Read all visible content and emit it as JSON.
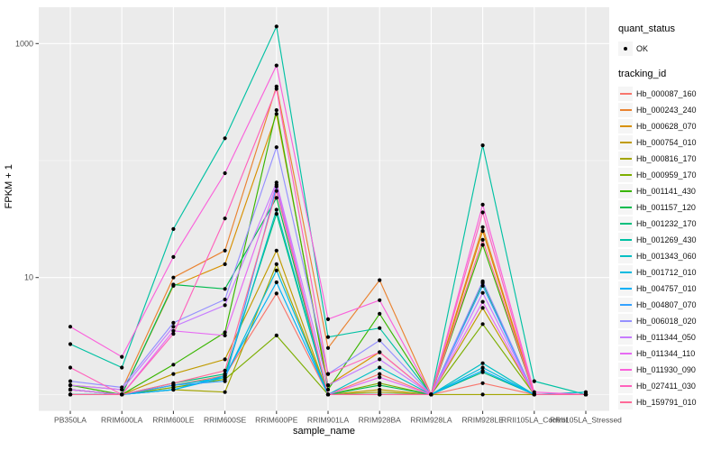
{
  "legend": {
    "quant_title": "quant_status",
    "quant_item": "OK",
    "tracking_title": "tracking_id"
  },
  "chart_data": {
    "type": "line",
    "title": "",
    "xlabel": "sample_name",
    "ylabel": "FPKM + 1",
    "scale": "log10",
    "ylim": [
      0.75,
      2000
    ],
    "grid": true,
    "legend_position": "right",
    "point_marker": "black dot on every value, legend quant_status = OK",
    "y_major_ticks": [
      {
        "label": "10",
        "value": 10
      },
      {
        "label": "1000",
        "value": 1000
      }
    ],
    "y_minor_gridlines": [
      1,
      100
    ],
    "categories": [
      "PB350LA",
      "RRIM600LA",
      "RRIM600LE",
      "RRIM600SE",
      "RRIM600PE",
      "RRIM901LA",
      "RRIM928BA",
      "RRIM928LA",
      "RRIM928LE",
      "RRII105LA_Control",
      "RRII105LA_Stressed"
    ],
    "series": [
      {
        "name": "Hb_000087_160",
        "color": "#F8766D",
        "values": [
          1.1,
          1.0,
          1.2,
          1.45,
          7.3,
          1.0,
          1.5,
          1.0,
          1.25,
          1.0,
          1.0
        ]
      },
      {
        "name": "Hb_000243_240",
        "color": "#EA8331",
        "values": [
          1.2,
          1.1,
          10,
          17,
          430,
          2.5,
          9.5,
          1.0,
          27,
          1.0,
          1.0
        ]
      },
      {
        "name": "Hb_000628_070",
        "color": "#D89000",
        "values": [
          1.1,
          1.0,
          8.5,
          13,
          250,
          1.2,
          2.3,
          1.0,
          25,
          1.0,
          1.0
        ]
      },
      {
        "name": "Hb_000754_010",
        "color": "#C09B00",
        "values": [
          1.0,
          1.0,
          1.5,
          2.0,
          17,
          1.0,
          1.1,
          1.0,
          5.5,
          1.0,
          1.0
        ]
      },
      {
        "name": "Hb_000816_170",
        "color": "#A3A500",
        "values": [
          1.0,
          1.0,
          1.1,
          1.05,
          13,
          1.0,
          1.05,
          1.0,
          1.0,
          1.0,
          1.0
        ]
      },
      {
        "name": "Hb_000959_170",
        "color": "#7CAE00",
        "values": [
          1.0,
          1.0,
          1.15,
          1.35,
          3.2,
          1.0,
          1.25,
          1.0,
          4.0,
          1.0,
          1.0
        ]
      },
      {
        "name": "Hb_001141_430",
        "color": "#39B600",
        "values": [
          1.2,
          1.0,
          1.8,
          3.4,
          270,
          1.1,
          4.9,
          1.0,
          19,
          1.0,
          1.0
        ]
      },
      {
        "name": "Hb_001157_120",
        "color": "#00BB4E",
        "values": [
          1.1,
          1.0,
          8.7,
          8.0,
          48,
          1.0,
          1.2,
          1.0,
          9.0,
          1.0,
          1.0
        ]
      },
      {
        "name": "Hb_001232_170",
        "color": "#00BF7D",
        "values": [
          1.0,
          1.0,
          1.25,
          1.5,
          35,
          1.0,
          1.0,
          1.0,
          1.55,
          1.0,
          1.0
        ]
      },
      {
        "name": "Hb_001269_430",
        "color": "#00C1A3",
        "values": [
          2.7,
          1.7,
          26,
          155,
          1400,
          3.1,
          3.7,
          1.0,
          135,
          1.3,
          1.0
        ]
      },
      {
        "name": "Hb_001343_060",
        "color": "#00BFC4",
        "values": [
          1.1,
          1.0,
          1.2,
          1.4,
          38,
          1.0,
          1.7,
          1.0,
          1.85,
          1.0,
          1.05
        ]
      },
      {
        "name": "Hb_001712_010",
        "color": "#00BAE0",
        "values": [
          1.0,
          1.0,
          1.1,
          1.4,
          11.5,
          1.0,
          1.0,
          1.0,
          1.7,
          1.0,
          1.0
        ]
      },
      {
        "name": "Hb_004757_010",
        "color": "#00B0F6",
        "values": [
          1.0,
          1.0,
          1.1,
          1.45,
          9.1,
          1.0,
          1.0,
          1.0,
          1.6,
          1.0,
          1.0
        ]
      },
      {
        "name": "Hb_004807_070",
        "color": "#35A2FF",
        "values": [
          1.0,
          1.0,
          1.2,
          1.3,
          60,
          1.0,
          1.0,
          1.0,
          8.5,
          1.0,
          1.0
        ]
      },
      {
        "name": "Hb_006018_020",
        "color": "#9590FF",
        "values": [
          1.3,
          1.15,
          4.1,
          6.5,
          130,
          1.5,
          2.9,
          1.0,
          9.3,
          1.0,
          1.0
        ]
      },
      {
        "name": "Hb_011344_050",
        "color": "#C77CFF",
        "values": [
          1.2,
          1.1,
          3.8,
          5.8,
          65,
          1.2,
          2.0,
          1.0,
          7.4,
          1.0,
          1.0
        ]
      },
      {
        "name": "Hb_011344_110",
        "color": "#E76BF3",
        "values": [
          1.1,
          1.0,
          3.5,
          3.2,
          62,
          1.0,
          1.4,
          1.0,
          6.2,
          1.0,
          1.0
        ]
      },
      {
        "name": "Hb_011930_090",
        "color": "#FA62DB",
        "values": [
          3.8,
          2.1,
          15,
          78,
          650,
          4.4,
          6.4,
          1.0,
          42,
          1.05,
          1.0
        ]
      },
      {
        "name": "Hb_027411_030",
        "color": "#FF62BC",
        "values": [
          1.7,
          1.0,
          3.3,
          32,
          410,
          1.5,
          2.3,
          1.0,
          36,
          1.0,
          1.0
        ]
      },
      {
        "name": "Hb_159791_010",
        "color": "#FF6A98",
        "values": [
          1.0,
          1.0,
          1.25,
          1.6,
          55,
          1.0,
          1.0,
          1.0,
          21,
          1.0,
          1.0
        ]
      }
    ],
    "style": {
      "panel_bg": "#EBEBEB",
      "grid_color": "#FFFFFF",
      "point_color": "#000000",
      "axis_text_color": "#4D4D4D",
      "axis_title_color": "#000000"
    }
  }
}
